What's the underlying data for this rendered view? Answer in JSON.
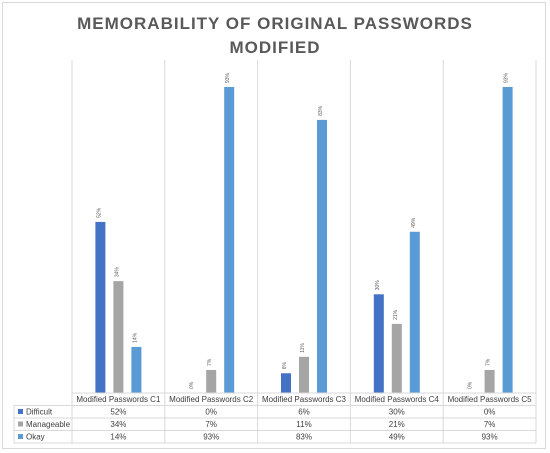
{
  "chart_data": {
    "type": "bar",
    "title_line1": "MEMORABILITY OF ORIGINAL PASSWORDS",
    "title_line2": "MODIFIED",
    "categories": [
      "Modified Passwords C1",
      "Modified Passwords C2",
      "Modified Passwords C3",
      "Modified Passwords C4",
      "Modified Passwords C5"
    ],
    "series": [
      {
        "name": "Difficult",
        "values": [
          52,
          0,
          6,
          30,
          0
        ],
        "labels": [
          "52%",
          "0%",
          "6%",
          "30%",
          "0%"
        ],
        "color": "#4472c4"
      },
      {
        "name": "Manageable",
        "values": [
          34,
          7,
          11,
          21,
          7
        ],
        "labels": [
          "34%",
          "7%",
          "11%",
          "21%",
          "7%"
        ],
        "color": "#a5a5a5"
      },
      {
        "name": "Okay",
        "values": [
          14,
          93,
          83,
          49,
          93
        ],
        "labels": [
          "14%",
          "93%",
          "83%",
          "49%",
          "93%"
        ],
        "color": "#5b9bd5"
      }
    ],
    "ylim": [
      0,
      100
    ],
    "legend": "data-table",
    "grid": "vertical category separators"
  }
}
